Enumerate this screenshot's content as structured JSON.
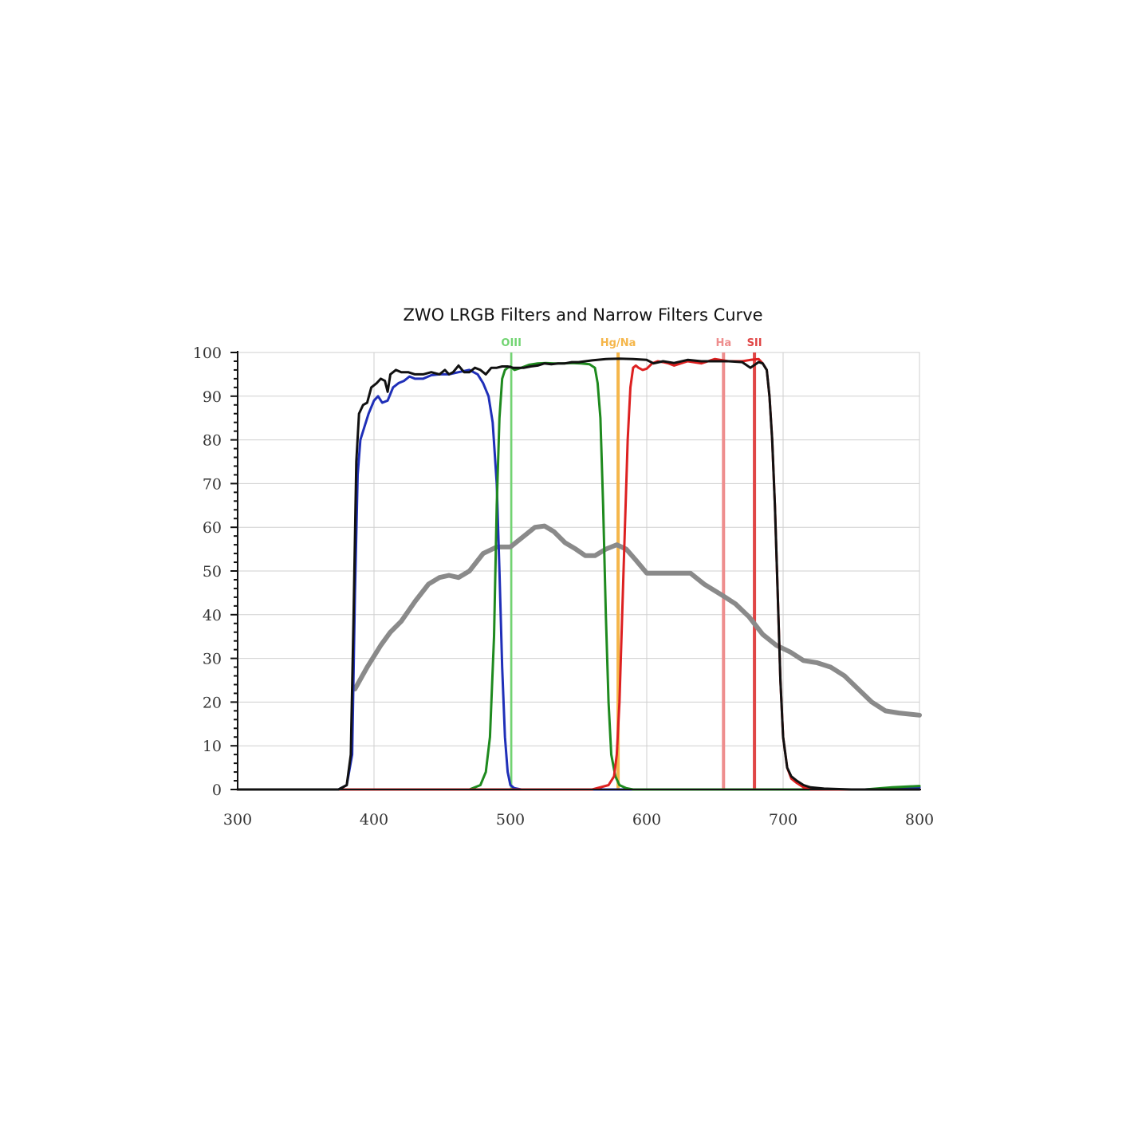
{
  "chart_data": {
    "type": "line",
    "title": "ZWO LRGB Filters and Narrow Filters Curve",
    "xlabel": "",
    "ylabel": "",
    "xlim": [
      300,
      800
    ],
    "ylim": [
      0,
      100
    ],
    "x_ticks": [
      300,
      400,
      500,
      600,
      700,
      800
    ],
    "y_ticks": [
      0,
      10,
      20,
      30,
      40,
      50,
      60,
      70,
      80,
      90,
      100
    ],
    "grid": true,
    "legend": "none",
    "series": [
      {
        "color": "#8a8a8a",
        "width": 6,
        "x": [
          386,
          395,
          405,
          412,
          420,
          430,
          440,
          448,
          455,
          462,
          470,
          480,
          490,
          500,
          510,
          518,
          525,
          532,
          540,
          548,
          555,
          562,
          570,
          578,
          585,
          592,
          600,
          610,
          620,
          632,
          642,
          655,
          665,
          675,
          685,
          695,
          705,
          715,
          725,
          735,
          745,
          755,
          765,
          775,
          785,
          800
        ],
        "values": [
          23,
          28,
          33,
          36,
          38.5,
          43,
          47,
          48.5,
          49,
          48.5,
          50,
          54,
          55.5,
          55.5,
          58,
          60,
          60.3,
          59,
          56.5,
          55,
          53.5,
          53.5,
          55,
          56,
          55,
          52.5,
          49.5,
          49.5,
          49.5,
          49.5,
          47,
          44.5,
          42.5,
          39.5,
          35.5,
          33,
          31.5,
          29.5,
          29,
          28,
          26,
          23,
          20,
          18,
          17.5,
          17
        ]
      },
      {
        "color": "#1f2fb8",
        "width": 3,
        "x": [
          300,
          374,
          380,
          384,
          386,
          388,
          390,
          393,
          396,
          400,
          403,
          406,
          410,
          414,
          418,
          422,
          426,
          430,
          436,
          442,
          448,
          455,
          462,
          470,
          476,
          480,
          484,
          487,
          490,
          492,
          494,
          496,
          498,
          500,
          503,
          508,
          520,
          700,
          760,
          780,
          800
        ],
        "values": [
          0,
          0,
          1,
          8,
          45,
          72,
          80,
          83,
          86,
          89,
          90,
          88.5,
          89,
          92,
          93,
          93.5,
          94.5,
          94,
          94,
          94.8,
          95,
          95,
          95.5,
          96,
          95,
          93,
          90,
          84,
          70,
          50,
          28,
          12,
          4,
          1,
          0.3,
          0,
          0,
          0,
          0,
          0.3,
          0.5
        ]
      },
      {
        "color": "#1e8a1e",
        "width": 3,
        "x": [
          300,
          470,
          478,
          482,
          485,
          488,
          490,
          492,
          494,
          496,
          498,
          500,
          503,
          508,
          514,
          520,
          526,
          532,
          538,
          545,
          552,
          558,
          562,
          564,
          566,
          568,
          570,
          572,
          574,
          577,
          580,
          585,
          590,
          600,
          700,
          760,
          780,
          800
        ],
        "values": [
          0,
          0,
          1,
          4,
          12,
          35,
          65,
          85,
          94,
          96,
          96.5,
          96.8,
          96,
          96.5,
          97.2,
          97.5,
          97.6,
          97.5,
          97.5,
          97.6,
          97.5,
          97.3,
          96.5,
          93,
          85,
          65,
          40,
          20,
          8,
          3,
          1,
          0.3,
          0,
          0,
          0,
          0,
          0.5,
          0.8
        ]
      },
      {
        "color": "#dd2020",
        "width": 3,
        "x": [
          300,
          560,
          572,
          576,
          578,
          580,
          583,
          586,
          588,
          590,
          592,
          594,
          597,
          600,
          604,
          608,
          612,
          616,
          620,
          630,
          640,
          650,
          660,
          670,
          676,
          682,
          685,
          688,
          690,
          692,
          694,
          696,
          698,
          700,
          703,
          706,
          710,
          715,
          720,
          730,
          740,
          760,
          800
        ],
        "values": [
          0,
          0,
          1,
          3,
          8,
          20,
          50,
          80,
          92,
          96.5,
          97,
          96.5,
          96,
          96.3,
          97.5,
          98,
          97.8,
          97.5,
          97,
          98,
          97.5,
          98.5,
          98,
          98,
          98.3,
          98.5,
          97.5,
          96,
          90,
          80,
          65,
          45,
          25,
          12,
          5,
          2.5,
          1.5,
          0.5,
          0,
          0,
          0,
          0,
          0
        ]
      },
      {
        "color": "#111111",
        "width": 3,
        "x": [
          300,
          374,
          380,
          383,
          385,
          387,
          389,
          392,
          395,
          398,
          402,
          405,
          408,
          410,
          412,
          416,
          420,
          425,
          430,
          436,
          442,
          448,
          452,
          455,
          458,
          462,
          466,
          470,
          474,
          478,
          482,
          486,
          490,
          494,
          498,
          502,
          506,
          510,
          515,
          520,
          525,
          530,
          535,
          540,
          545,
          550,
          560,
          570,
          580,
          590,
          600,
          605,
          612,
          620,
          630,
          640,
          650,
          660,
          670,
          676,
          682,
          685,
          688,
          690,
          692,
          694,
          696,
          698,
          700,
          703,
          706,
          710,
          715,
          720,
          730,
          750,
          800
        ],
        "values": [
          0,
          0,
          1,
          8,
          40,
          75,
          86,
          88,
          88.5,
          92,
          93,
          94,
          93.5,
          91,
          95,
          96,
          95.5,
          95.5,
          95,
          95,
          95.5,
          95,
          96,
          95,
          95.5,
          97,
          95.5,
          95.5,
          96.5,
          96,
          95,
          96.5,
          96.5,
          96.8,
          96.8,
          96.5,
          96.5,
          96.5,
          96.8,
          97,
          97.5,
          97.3,
          97.5,
          97.5,
          97.8,
          97.8,
          98.2,
          98.5,
          98.6,
          98.5,
          98.3,
          97.5,
          98,
          97.6,
          98.3,
          98,
          98,
          98,
          97.8,
          96.5,
          97.8,
          97.5,
          96,
          90,
          80,
          65,
          45,
          25,
          12,
          5,
          3,
          2,
          1,
          0.5,
          0.2,
          0,
          0
        ]
      }
    ],
    "bands": [
      {
        "label": "OIII",
        "x": 500.7,
        "color": "#72d472",
        "width": 2.5
      },
      {
        "label": "Hg/Na",
        "x": 579,
        "color": "#f5b64a",
        "width": 4
      },
      {
        "label": "Ha",
        "x": 656.3,
        "color": "#ee8e8e",
        "width": 4
      },
      {
        "label": "SII",
        "x": 679,
        "color": "#e04646",
        "width": 4
      }
    ],
    "colors": {
      "grid": "#cfcfcf",
      "axis": "#111111"
    }
  }
}
